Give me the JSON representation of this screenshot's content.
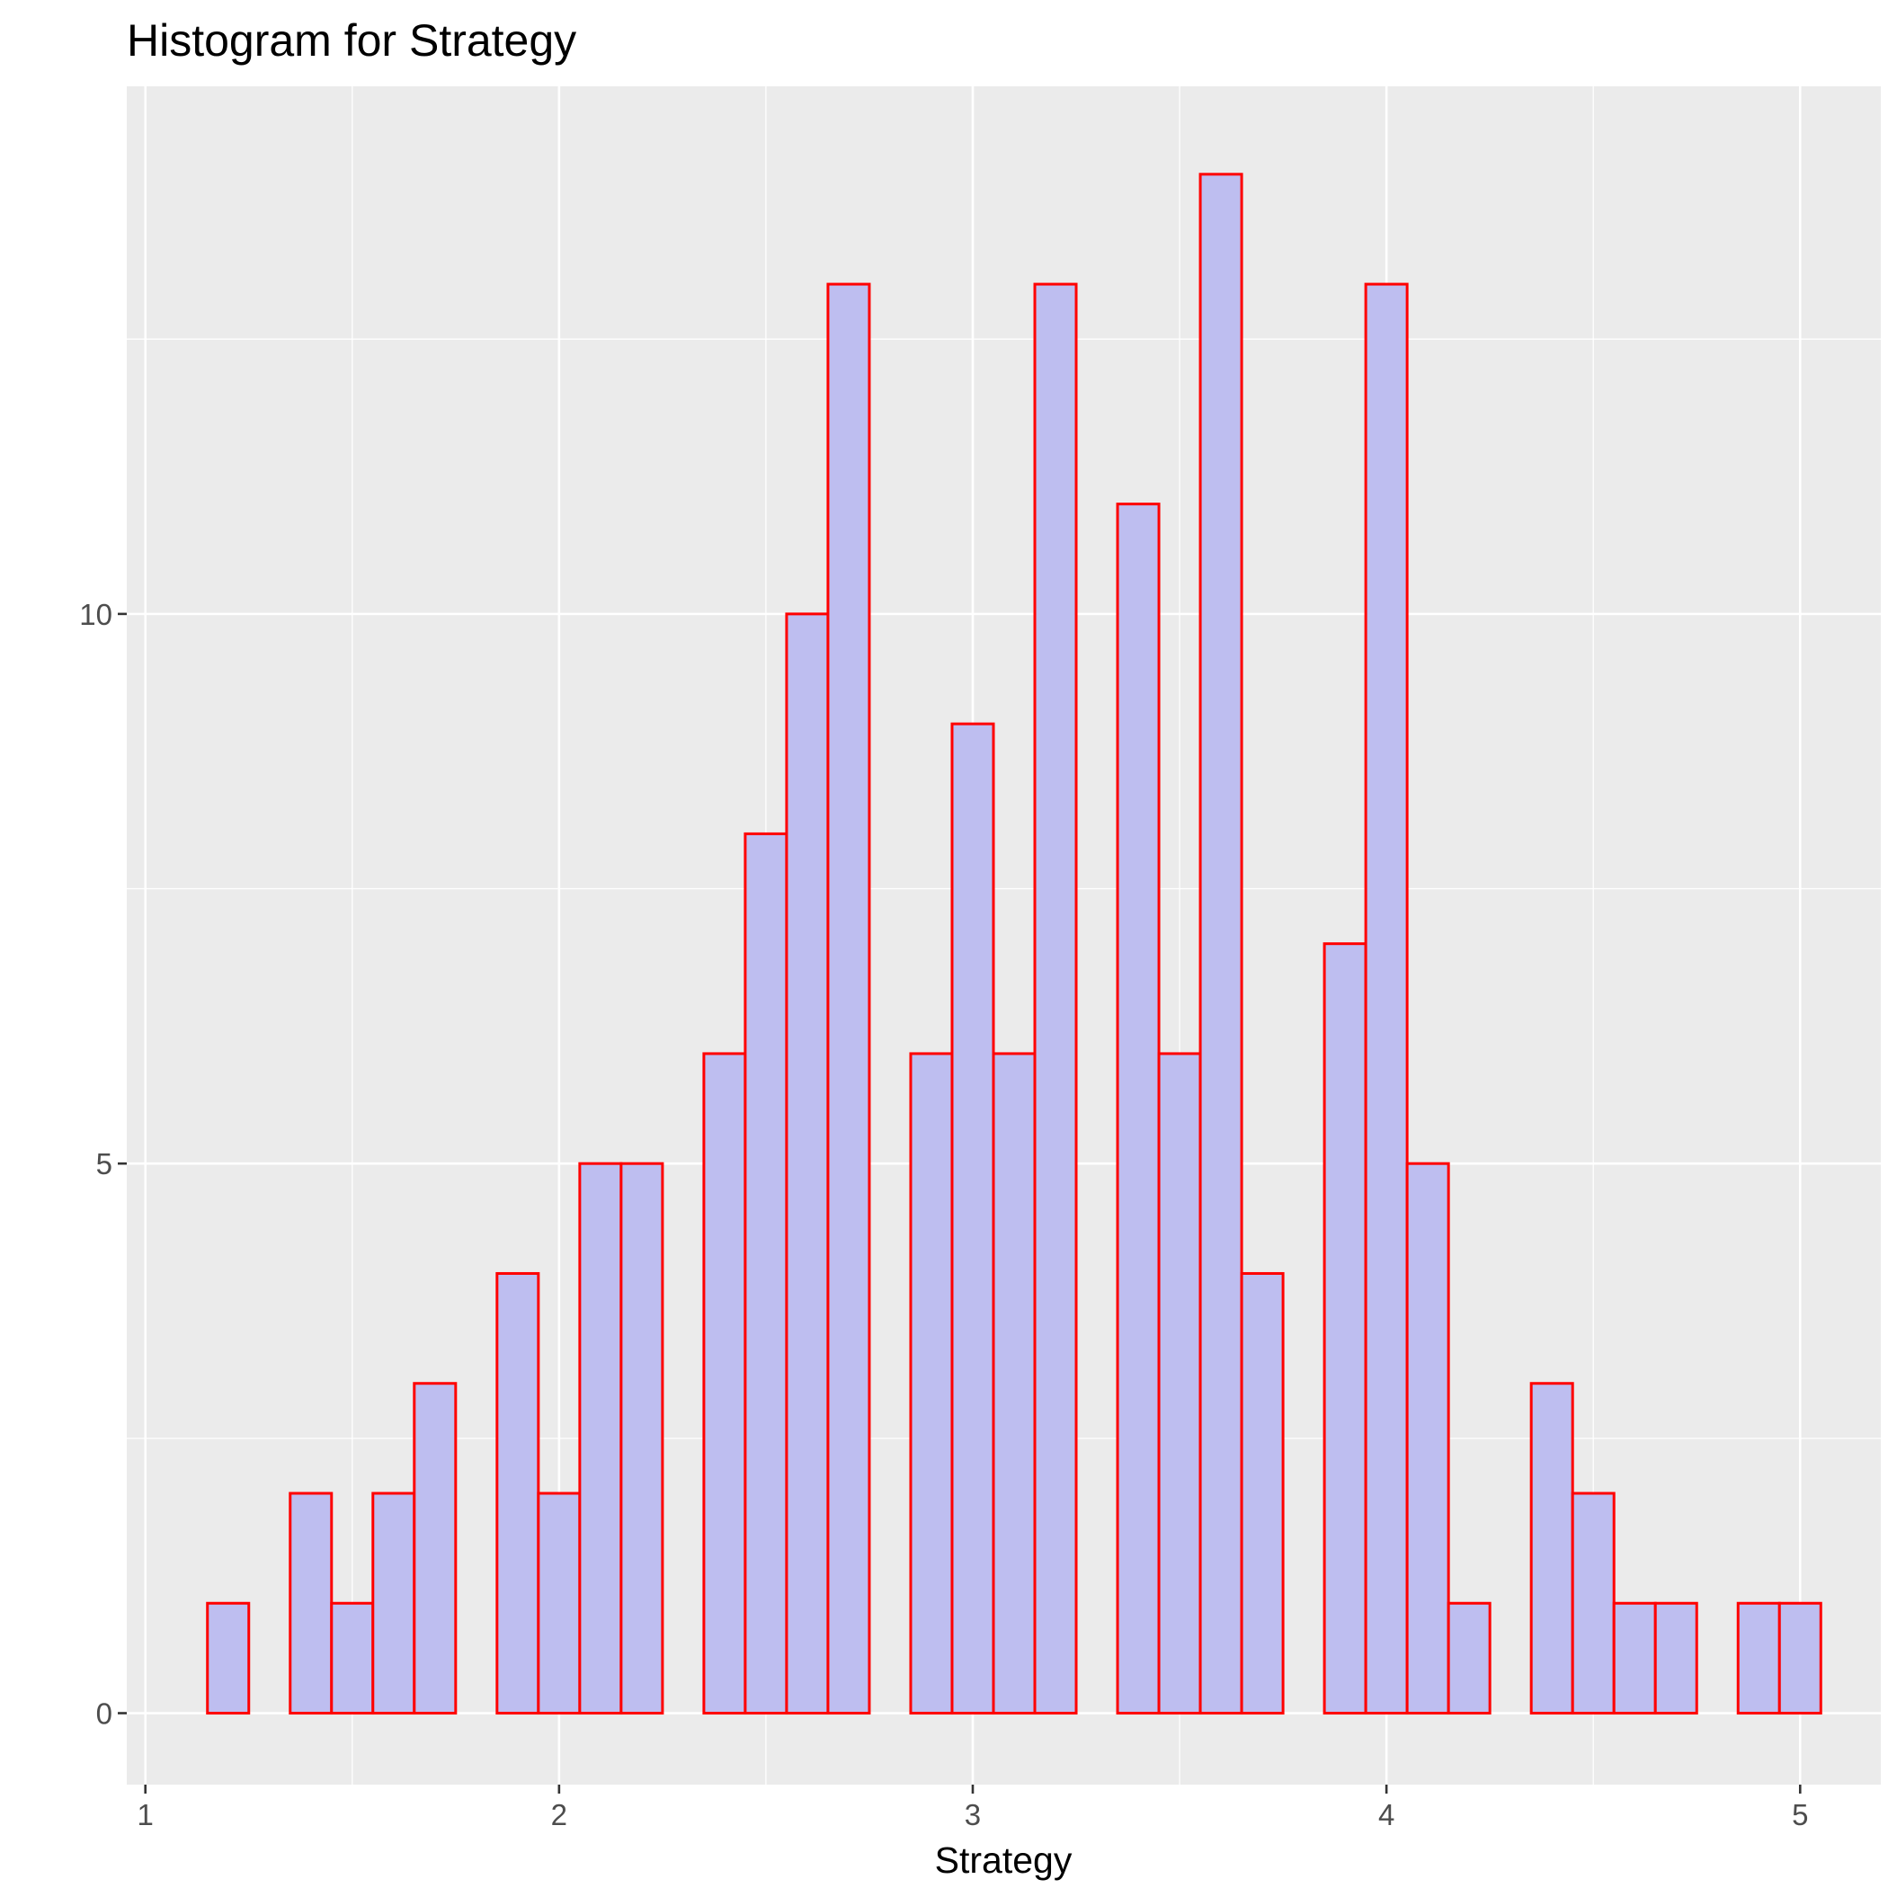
{
  "chart_data": {
    "type": "bar",
    "title": "Histogram for Strategy",
    "xlabel": "Strategy",
    "ylabel": "",
    "xlim": [
      0.955,
      5.195
    ],
    "ylim": [
      -0.65,
      14.8
    ],
    "x_ticks": [
      1,
      2,
      3,
      4,
      5
    ],
    "x_tick_labels": [
      "1",
      "2",
      "3",
      "4",
      "5"
    ],
    "y_ticks": [
      0,
      5,
      10
    ],
    "y_tick_labels": [
      "0",
      "5",
      "10"
    ],
    "bin_width": 0.1,
    "bin_centers": [
      1.2,
      1.3,
      1.4,
      1.5,
      1.6,
      1.7,
      1.8,
      1.9,
      2.0,
      2.1,
      2.2,
      2.3,
      2.4,
      2.5,
      2.6,
      2.7,
      2.8,
      2.9,
      3.0,
      3.1,
      3.2,
      3.3,
      3.4,
      3.5,
      3.6,
      3.7,
      3.8,
      3.9,
      4.0,
      4.1,
      4.2,
      4.3,
      4.4,
      4.5,
      4.6,
      4.7,
      4.8,
      4.9,
      5.0
    ],
    "values": [
      1,
      0,
      2,
      1,
      2,
      3,
      0,
      4,
      2,
      5,
      5,
      0,
      6,
      8,
      10,
      13,
      0,
      6,
      9,
      6,
      13,
      0,
      11,
      6,
      14,
      4,
      0,
      7,
      13,
      5,
      1,
      0,
      3,
      2,
      1,
      1,
      0,
      1,
      1
    ],
    "grid": true,
    "legend": "none",
    "colors": {
      "panel_background": "#ebebeb",
      "grid_line": "#ffffff",
      "bar_fill": "#bebef0",
      "bar_stroke": "#ff0000",
      "tick_mark": "#333333"
    }
  }
}
